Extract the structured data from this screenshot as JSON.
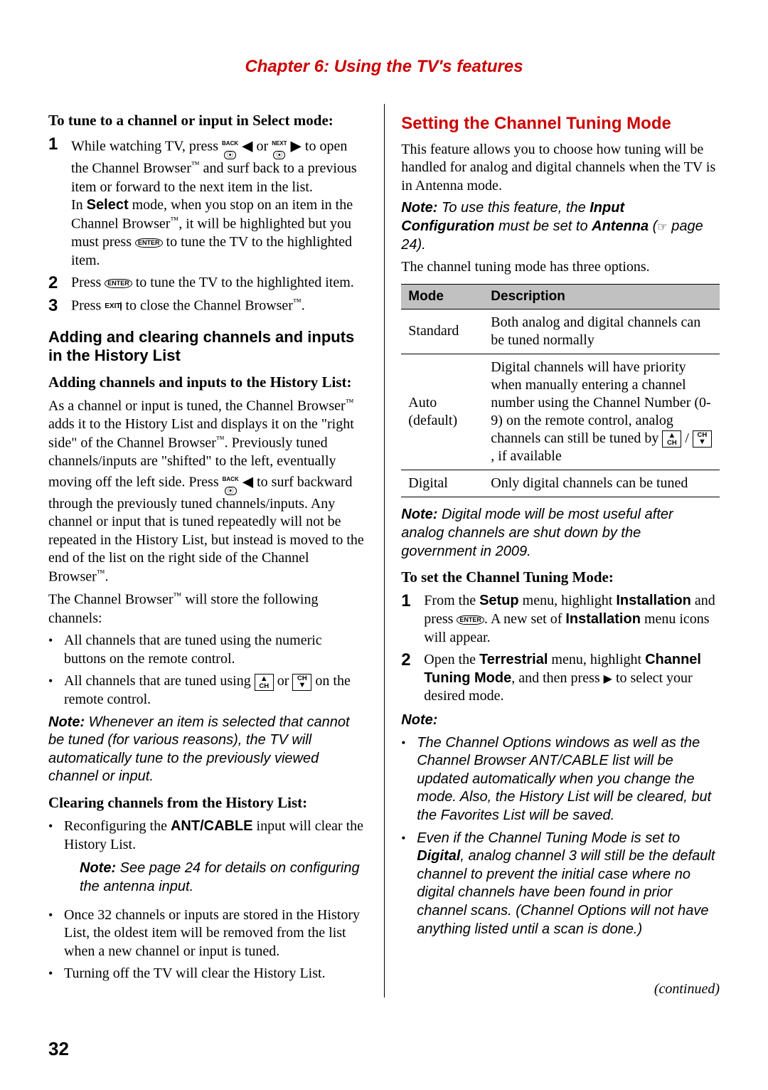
{
  "chapter_title": "Chapter 6: Using the TV's features",
  "page_number": "32",
  "continued": "(continued)",
  "left": {
    "h4_1": "To tune to a channel or input in Select mode:",
    "steps1": {
      "s1a": "While watching TV, press ",
      "s1b": " or ",
      "s1c": " to open the Channel Browser",
      "s1d": " and surf back to a previous item or forward to the next item in the list.",
      "s1e": "In ",
      "select": "Select",
      "s1f": " mode, when you stop on an item in the Channel Browser",
      "s1g": ", it will be highlighted but you must press ",
      "s1h": " to tune the TV to the highlighted item.",
      "s2a": "Press ",
      "s2b": " to tune the TV to the highlighted item.",
      "s3a": "Press ",
      "s3b": " to close the Channel Browser",
      "s3c": "."
    },
    "h3_history": "Adding and clearing channels and inputs in the History List",
    "h4_add": "Adding channels and inputs to the History List:",
    "p_history1a": "As a channel or input is tuned, the Channel Browser",
    "p_history1b": " adds it to the History List and displays it on the \"right side\" of the Channel Browser",
    "p_history1c": ". Previously tuned channels/inputs are \"shifted\" to the left, eventually moving off the left side. Press ",
    "p_history1d": " to surf backward through the previously tuned channels/inputs. Any channel or input that is tuned repeatedly will not be repeated in the History List, but instead is moved to the end of the list on the right side of the Channel Browser",
    "p_history1e": ".",
    "p_store1": "The Channel Browser",
    "p_store2": " will store the following channels:",
    "bullets_store": {
      "b1": "All channels that are tuned using the numeric buttons on the remote control.",
      "b2a": "All channels that are tuned using ",
      "b2b": " or ",
      "b2c": " on the remote control."
    },
    "note1a": "Note:",
    "note1b": " Whenever an item is selected that cannot be tuned (for various reasons), the TV will automatically tune to the previously viewed channel or input.",
    "h4_clear": "Clearing channels from the History List:",
    "clear_b1a": "Reconfiguring the ",
    "antcable": "ANT/CABLE",
    "clear_b1b": " input will clear the History List.",
    "note2a": "Note:",
    "note2b": " See page 24 for details on configuring the antenna input.",
    "clear_b2": "Once 32 channels or inputs are stored in the History List, the oldest item will be removed from the list when a new channel or input is tuned.",
    "clear_b3": "Turning off the TV will clear the History List."
  },
  "right": {
    "h2": "Setting the Channel Tuning Mode",
    "p1": "This feature allows you to choose how tuning will be handled for analog and digital channels when the TV is in Antenna mode.",
    "note_cfg_a": "Note:",
    "note_cfg_b": " To use this feature, the ",
    "note_cfg_bold": "Input Configuration",
    "note_cfg_c": " must be set to ",
    "note_cfg_bold2": "Antenna",
    "note_cfg_d": " (",
    "note_cfg_e": " page 24).",
    "p2": "The channel tuning mode has three options.",
    "table": {
      "h1": "Mode",
      "h2": "Description",
      "r1m": "Standard",
      "r1d": "Both analog and digital channels can be tuned normally",
      "r2m1": "Auto",
      "r2m2": "(default)",
      "r2da": "Digital channels will have priority when manually entering a channel number using the Channel Number (0-9) on the remote control, analog channels can still be tuned by ",
      "r2db": " / ",
      "r2dc": " , if available",
      "r3m": "Digital",
      "r3d": "Only digital channels can be tuned"
    },
    "note_dig_a": "Note:",
    "note_dig_b": " Digital mode will be most useful after analog channels are shut down by the government in 2009.",
    "h4_set": "To set the Channel Tuning Mode:",
    "steps2": {
      "s1a": "From the ",
      "setup": "Setup",
      "s1b": " menu, highlight ",
      "install": "Installation",
      "s1c": " and press ",
      "s1d": ". A new set of ",
      "s1e": " menu icons will appear.",
      "s2a": "Open the ",
      "terrestrial": "Terrestrial",
      "s2b": " menu, highlight ",
      "ctm": "Channel Tuning Mode",
      "s2c": ", and then press ",
      "s2d": " to select your desired mode."
    },
    "note3_label": "Note:",
    "note3_b1": "The Channel Options windows as well as the Channel Browser ANT/CABLE list will be updated automatically when you change the mode. Also, the History List will be cleared, but the Favorites List will be saved.",
    "note3_b2a": "Even if the Channel Tuning Mode is set to ",
    "digital_bold": "Digital",
    "note3_b2b": ", analog channel 3 will still be the default channel to prevent the initial case where no digital channels have been found in prior channel scans. (Channel Options will not have anything listed until a scan is done.)"
  },
  "icons": {
    "enter": "ENTER",
    "exit": "EXIT",
    "back": "BACK",
    "next": "NEXT",
    "ch_up_a": "▲",
    "ch_up_b": "CH",
    "ch_dn_a": "CH",
    "ch_dn_b": "▼"
  }
}
